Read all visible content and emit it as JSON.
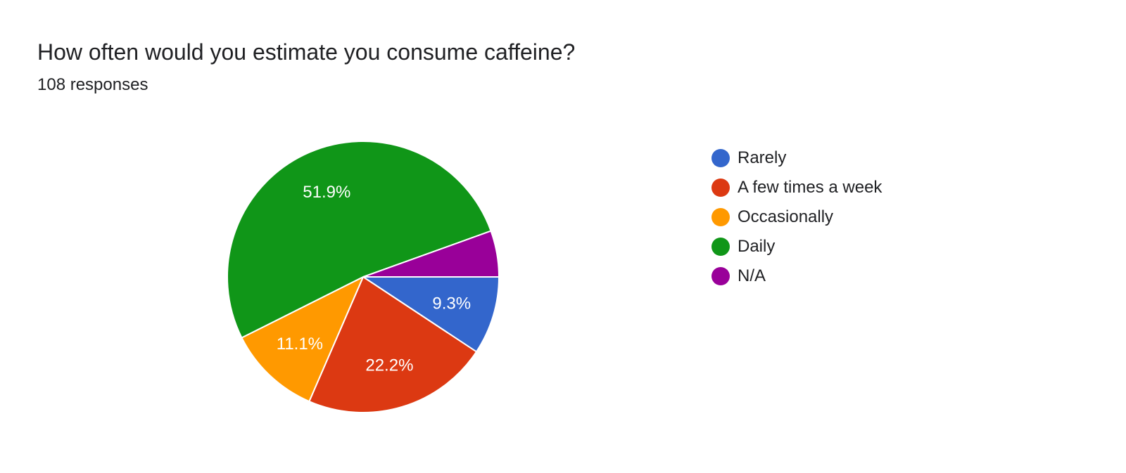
{
  "question": {
    "title": "How often would you estimate you consume caffeine?",
    "responses_label": "108 responses"
  },
  "chart_data": {
    "type": "pie",
    "title": "How often would you estimate you consume caffeine?",
    "legend_placement": "right",
    "start": "3 o'clock, clockwise",
    "slices": [
      {
        "label": "Rarely",
        "percent": 9.3,
        "color": "#3366cc",
        "data_label": "9.3%"
      },
      {
        "label": "A few times a week",
        "percent": 22.2,
        "color": "#dc3912",
        "data_label": "22.2%"
      },
      {
        "label": "Occasionally",
        "percent": 11.1,
        "color": "#ff9900",
        "data_label": "11.1%"
      },
      {
        "label": "Daily",
        "percent": 51.9,
        "color": "#109618",
        "data_label": "51.9%"
      },
      {
        "label": "N/A",
        "percent": 5.5,
        "color": "#990099",
        "data_label": ""
      }
    ]
  }
}
